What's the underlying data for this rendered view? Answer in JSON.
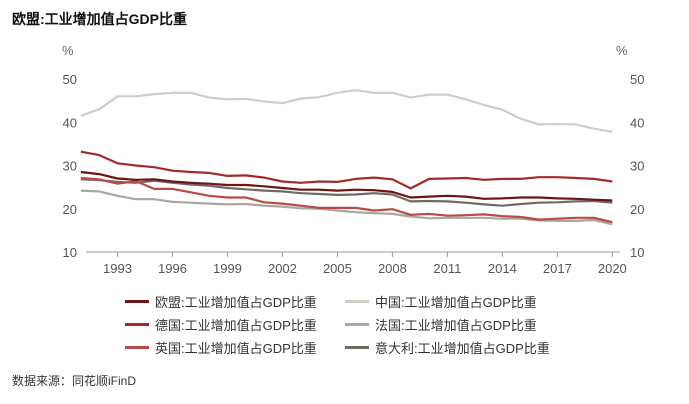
{
  "title": "欧盟:工业增加值占GDP比重",
  "source": "数据来源：同花顺iFinD",
  "chart_data": {
    "type": "line",
    "title": "欧盟:工业增加值占GDP比重",
    "left_unit": "%",
    "right_unit": "%",
    "ylim": [
      10,
      50
    ],
    "yticks": [
      10,
      20,
      30,
      40,
      50
    ],
    "xlim": [
      1991,
      2020
    ],
    "xticks": [
      1993,
      1996,
      1999,
      2002,
      2005,
      2008,
      2011,
      2014,
      2017,
      2020
    ],
    "legend_position": "bottom",
    "x": [
      1991,
      1992,
      1993,
      1994,
      1995,
      1996,
      1997,
      1998,
      1999,
      2000,
      2001,
      2002,
      2003,
      2004,
      2005,
      2006,
      2007,
      2008,
      2009,
      2010,
      2011,
      2012,
      2013,
      2014,
      2015,
      2016,
      2017,
      2018,
      2019,
      2020
    ],
    "series": [
      {
        "name": "欧盟:工业增加值占GDP比重",
        "color": "#6e1414",
        "values": [
          28.5,
          28.0,
          27.0,
          26.7,
          26.8,
          26.3,
          26.0,
          25.8,
          25.5,
          25.5,
          25.2,
          24.8,
          24.4,
          24.4,
          24.2,
          24.4,
          24.3,
          23.9,
          22.6,
          22.8,
          23.0,
          22.8,
          22.3,
          22.4,
          22.6,
          22.6,
          22.4,
          22.3,
          22.1,
          21.9
        ]
      },
      {
        "name": "中国:工业增加值占GDP比重",
        "color": "#d0cdc4",
        "values": [
          41.5,
          43.0,
          46.0,
          46.0,
          46.5,
          46.8,
          46.8,
          45.7,
          45.3,
          45.4,
          44.8,
          44.4,
          45.5,
          45.8,
          46.8,
          47.4,
          46.8,
          46.8,
          45.7,
          46.4,
          46.4,
          45.3,
          44.0,
          42.9,
          40.8,
          39.5,
          39.6,
          39.5,
          38.5,
          37.8
        ]
      },
      {
        "name": "德国:工业增加值占GDP比重",
        "color": "#a32a2a",
        "values": [
          33.2,
          32.4,
          30.5,
          30.0,
          29.6,
          28.8,
          28.5,
          28.3,
          27.6,
          27.7,
          27.2,
          26.3,
          26.0,
          26.3,
          26.2,
          26.9,
          27.2,
          26.8,
          24.7,
          26.9,
          27.0,
          27.1,
          26.7,
          26.9,
          26.9,
          27.3,
          27.3,
          27.1,
          26.9,
          26.3
        ]
      },
      {
        "name": "法国:工业增加值占GDP比重",
        "color": "#a9a69d",
        "values": [
          24.2,
          24.0,
          23.0,
          22.2,
          22.2,
          21.6,
          21.4,
          21.2,
          21.0,
          21.1,
          20.7,
          20.5,
          20.1,
          20.0,
          19.6,
          19.2,
          19.0,
          18.8,
          18.2,
          17.8,
          17.9,
          17.9,
          17.9,
          17.7,
          17.7,
          17.3,
          17.2,
          17.2,
          17.4,
          16.4
        ]
      },
      {
        "name": "英国:工业增加值占GDP比重",
        "color": "#b84a4a",
        "values": [
          27.1,
          26.8,
          25.8,
          26.4,
          24.6,
          24.6,
          23.8,
          23.0,
          22.6,
          22.6,
          21.5,
          21.2,
          20.7,
          20.2,
          20.2,
          20.2,
          19.6,
          19.9,
          18.6,
          18.8,
          18.4,
          18.5,
          18.7,
          18.3,
          18.1,
          17.5,
          17.7,
          17.9,
          17.9,
          16.9
        ]
      },
      {
        "name": "意大利:工业增加值占GDP比重",
        "color": "#6f6b62",
        "values": [
          26.8,
          26.6,
          26.2,
          26.0,
          26.5,
          26.0,
          25.6,
          25.3,
          24.8,
          24.5,
          24.2,
          24.0,
          23.6,
          23.4,
          23.2,
          23.3,
          23.6,
          23.3,
          21.7,
          21.8,
          21.7,
          21.4,
          21.0,
          20.7,
          21.1,
          21.4,
          21.5,
          21.7,
          21.8,
          21.4
        ]
      }
    ]
  }
}
